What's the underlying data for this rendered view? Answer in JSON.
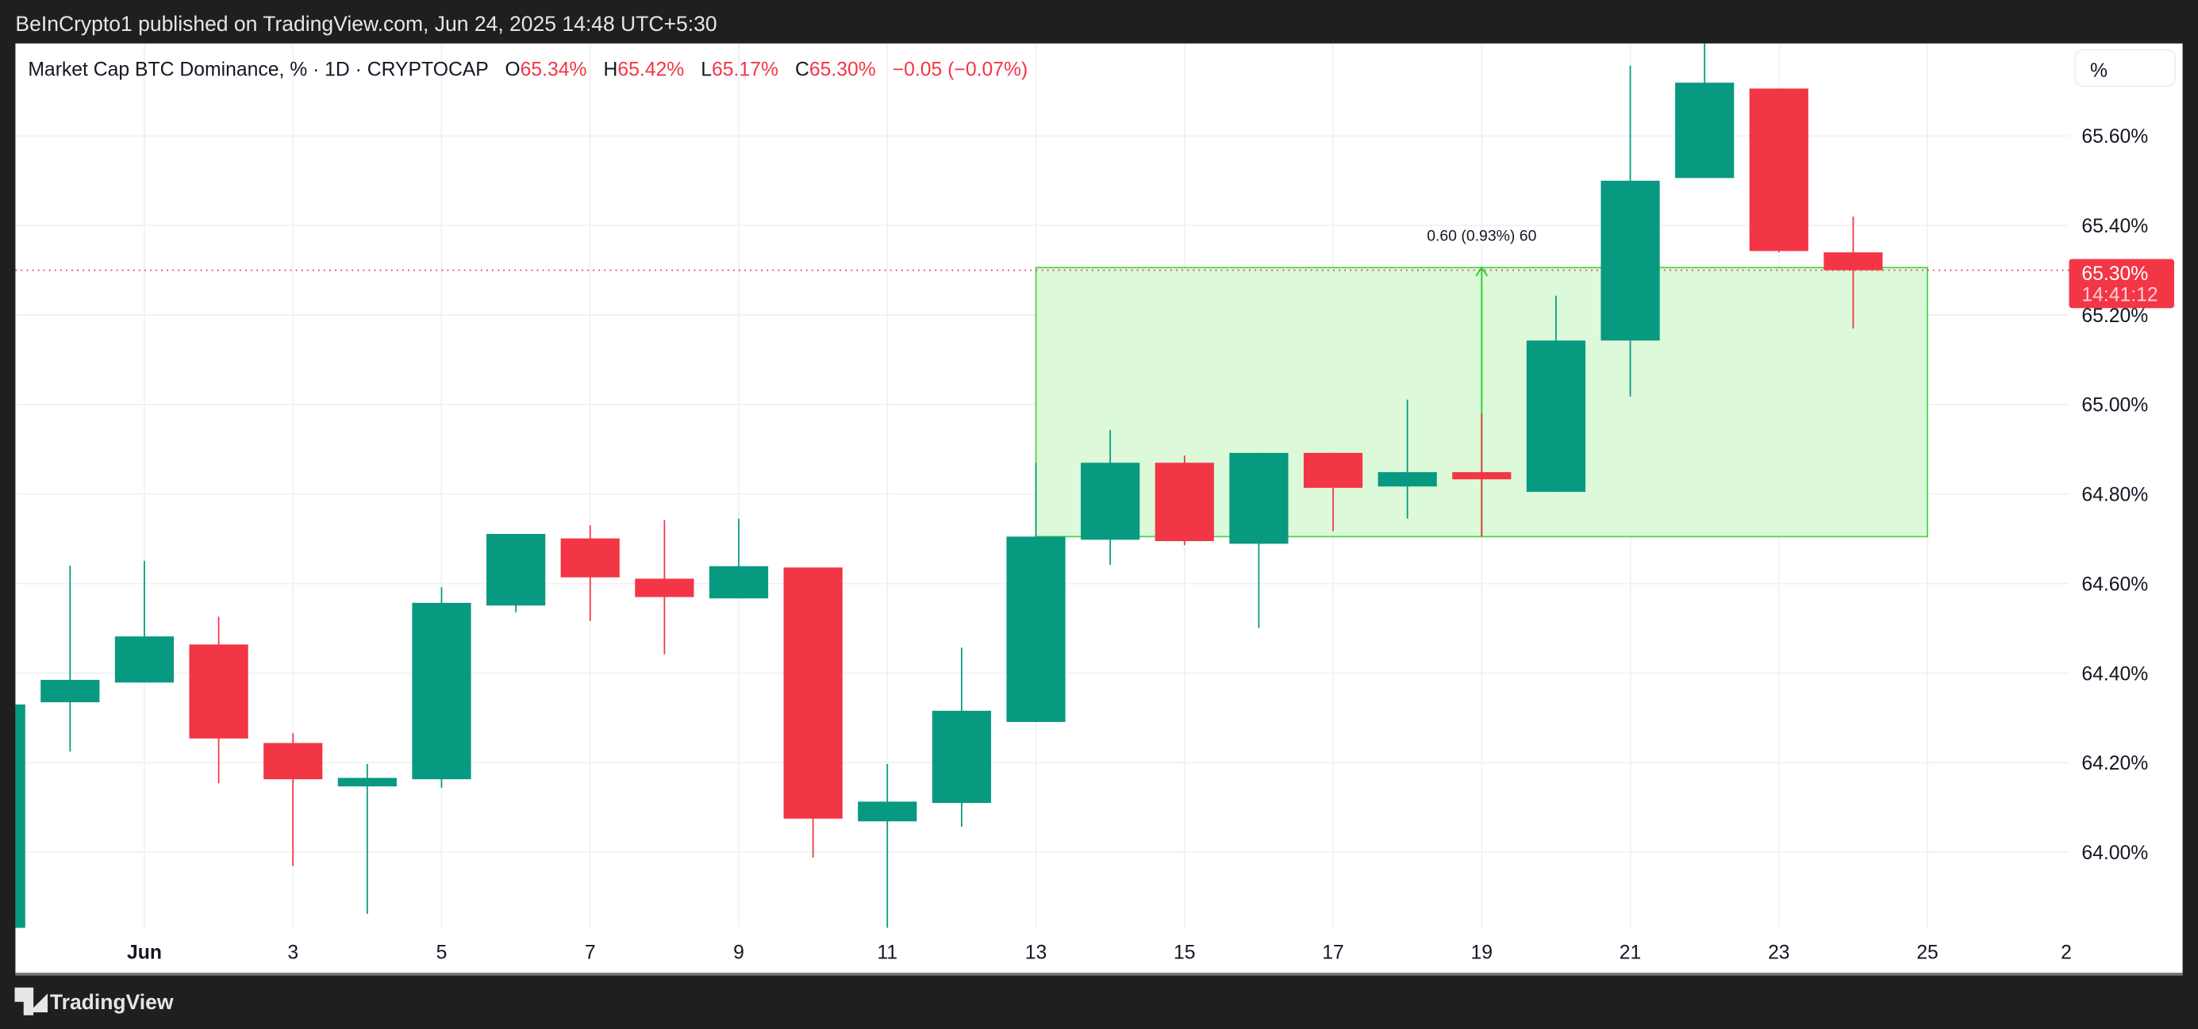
{
  "header": {
    "published": "BeInCrypto1 published on TradingView.com, Jun 24, 2025 14:48 UTC+5:30"
  },
  "legend": {
    "title": "Market Cap BTC Dominance, % · 1D · CRYPTOCAP",
    "o_label": "O",
    "o_value": "65.34%",
    "h_label": "H",
    "h_value": "65.42%",
    "l_label": "L",
    "l_value": "65.17%",
    "c_label": "C",
    "c_value": "65.30%",
    "change": "−0.05 (−0.07%)"
  },
  "price_axis": {
    "unit_button": "%",
    "current_price": "65.30%",
    "countdown": "14:41:12"
  },
  "footer": {
    "brand": "TradingView"
  },
  "colors": {
    "up": "#089981",
    "down": "#f23645",
    "range_fill": "#dcf9d9",
    "range_line": "#4cd44c"
  },
  "chart_data": {
    "type": "candlestick",
    "title": "Market Cap BTC Dominance, % · 1D · CRYPTOCAP",
    "ylim": [
      63.78,
      65.82
    ],
    "yticks": [
      64.0,
      64.2,
      64.4,
      64.6,
      64.8,
      65.0,
      65.2,
      65.4,
      65.6
    ],
    "ytick_labels": [
      "64.00%",
      "64.20%",
      "64.40%",
      "64.60%",
      "64.80%",
      "65.00%",
      "65.20%",
      "65.40%",
      "65.60%"
    ],
    "xticks": [
      {
        "day": 1,
        "label": "Jun"
      },
      {
        "day": 3,
        "label": "3"
      },
      {
        "day": 5,
        "label": "5"
      },
      {
        "day": 7,
        "label": "7"
      },
      {
        "day": 9,
        "label": "9"
      },
      {
        "day": 11,
        "label": "11"
      },
      {
        "day": 13,
        "label": "13"
      },
      {
        "day": 15,
        "label": "15"
      },
      {
        "day": 17,
        "label": "17"
      },
      {
        "day": 19,
        "label": "19"
      },
      {
        "day": 21,
        "label": "21"
      },
      {
        "day": 23,
        "label": "23"
      },
      {
        "day": 25,
        "label": "25"
      },
      {
        "day": 27,
        "label": "2"
      }
    ],
    "candles": [
      {
        "day": 0,
        "o": 63.83,
        "h": 64.34,
        "l": 63.83,
        "c": 64.33
      },
      {
        "day": 0.99,
        "o": 64.335,
        "h": 64.64,
        "l": 64.225,
        "c": 64.385
      },
      {
        "day": 1,
        "o": 64.379,
        "h": 64.651,
        "l": 64.379,
        "c": 64.482
      },
      {
        "day": 2,
        "o": 64.464,
        "h": 64.526,
        "l": 64.154,
        "c": 64.254
      },
      {
        "day": 3,
        "o": 64.244,
        "h": 64.266,
        "l": 63.969,
        "c": 64.163
      },
      {
        "day": 4,
        "o": 64.147,
        "h": 64.197,
        "l": 63.862,
        "c": 64.166
      },
      {
        "day": 5,
        "o": 64.163,
        "h": 64.592,
        "l": 64.144,
        "c": 64.557
      },
      {
        "day": 6,
        "o": 64.551,
        "h": 64.711,
        "l": 64.536,
        "c": 64.711
      },
      {
        "day": 7,
        "o": 64.701,
        "h": 64.73,
        "l": 64.517,
        "c": 64.614
      },
      {
        "day": 8,
        "o": 64.611,
        "h": 64.742,
        "l": 64.442,
        "c": 64.57
      },
      {
        "day": 9,
        "o": 64.567,
        "h": 64.745,
        "l": 64.567,
        "c": 64.639
      },
      {
        "day": 10,
        "o": 64.636,
        "h": 64.636,
        "l": 63.988,
        "c": 64.075
      },
      {
        "day": 11,
        "o": 64.069,
        "h": 64.197,
        "l": 63.831,
        "c": 64.113
      },
      {
        "day": 12,
        "o": 64.11,
        "h": 64.457,
        "l": 64.057,
        "c": 64.316
      },
      {
        "day": 13,
        "o": 64.291,
        "h": 64.87,
        "l": 64.291,
        "c": 64.705
      },
      {
        "day": 14,
        "o": 64.698,
        "h": 64.943,
        "l": 64.642,
        "c": 64.87
      },
      {
        "day": 15,
        "o": 64.87,
        "h": 64.886,
        "l": 64.686,
        "c": 64.695
      },
      {
        "day": 16,
        "o": 64.689,
        "h": 64.892,
        "l": 64.501,
        "c": 64.892
      },
      {
        "day": 17,
        "o": 64.892,
        "h": 64.892,
        "l": 64.717,
        "c": 64.814
      },
      {
        "day": 18,
        "o": 64.817,
        "h": 65.011,
        "l": 64.745,
        "c": 64.849
      },
      {
        "day": 19,
        "o": 64.849,
        "h": 64.98,
        "l": 64.705,
        "c": 64.833
      },
      {
        "day": 20,
        "o": 64.805,
        "h": 65.243,
        "l": 64.805,
        "c": 65.143
      },
      {
        "day": 21,
        "o": 65.143,
        "h": 65.757,
        "l": 65.018,
        "c": 65.5
      },
      {
        "day": 22,
        "o": 65.506,
        "h": 65.81,
        "l": 65.506,
        "c": 65.719
      },
      {
        "day": 23,
        "o": 65.706,
        "h": 65.706,
        "l": 65.34,
        "c": 65.343
      },
      {
        "day": 24,
        "o": 65.34,
        "h": 65.42,
        "l": 65.17,
        "c": 65.3
      }
    ],
    "current_price": 65.3,
    "range_measure": {
      "from_day": 13,
      "to_day": 25,
      "low": 64.705,
      "high": 65.306,
      "label": "0.60 (0.93%) 60"
    }
  }
}
